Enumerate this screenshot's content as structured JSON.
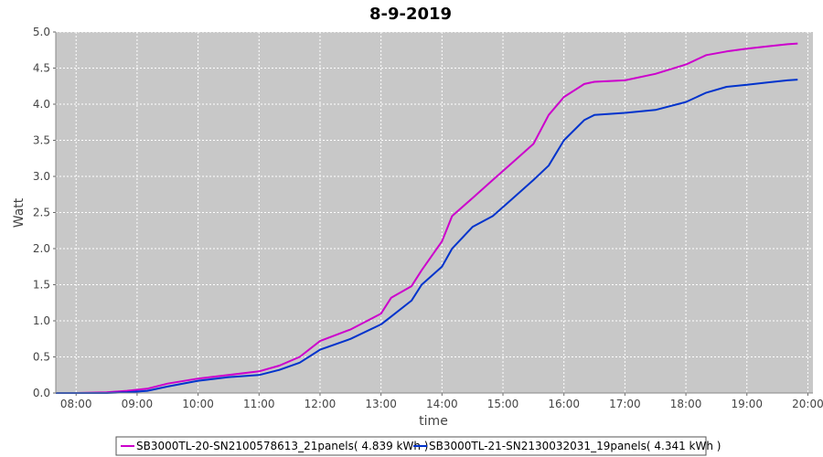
{
  "chart_data": {
    "type": "line",
    "title": "8-9-2019",
    "xlabel": "time",
    "ylabel": "Watt",
    "xlim": [
      "07:40",
      "20:05"
    ],
    "ylim": [
      0,
      5.0
    ],
    "x_ticks": [
      "08:00",
      "09:00",
      "10:00",
      "11:00",
      "12:00",
      "13:00",
      "14:00",
      "15:00",
      "16:00",
      "17:00",
      "18:00",
      "19:00",
      "20:00"
    ],
    "y_ticks": [
      "0.0",
      "0.5",
      "1.0",
      "1.5",
      "2.0",
      "2.5",
      "3.0",
      "3.5",
      "4.0",
      "4.5",
      "5.0"
    ],
    "grid": true,
    "background": "#c8c8c8",
    "legend_position": "bottom",
    "x": [
      "07:40",
      "08:00",
      "08:30",
      "08:50",
      "09:10",
      "09:30",
      "10:00",
      "10:30",
      "11:00",
      "11:20",
      "11:40",
      "12:00",
      "12:30",
      "13:00",
      "13:10",
      "13:30",
      "13:40",
      "14:00",
      "14:10",
      "14:30",
      "14:50",
      "15:10",
      "15:30",
      "15:45",
      "16:00",
      "16:20",
      "16:30",
      "17:00",
      "17:30",
      "18:00",
      "18:20",
      "18:40",
      "19:00",
      "19:20",
      "19:40",
      "19:50"
    ],
    "series": [
      {
        "name": "SB3000TL-20-SN2100578613_21panels( 4.839 kWh )",
        "color": "#cc00cc",
        "values": [
          0.0,
          0.0,
          0.01,
          0.03,
          0.06,
          0.13,
          0.2,
          0.25,
          0.3,
          0.38,
          0.5,
          0.72,
          0.88,
          1.1,
          1.32,
          1.48,
          1.7,
          2.1,
          2.45,
          2.7,
          2.95,
          3.2,
          3.45,
          3.85,
          4.1,
          4.28,
          4.31,
          4.33,
          4.42,
          4.55,
          4.68,
          4.73,
          4.77,
          4.8,
          4.83,
          4.84
        ]
      },
      {
        "name": "SB3000TL-21-SN2130032031_19panels( 4.341 kWh )",
        "color": "#0033cc",
        "values": [
          0.0,
          0.0,
          0.0,
          0.01,
          0.03,
          0.09,
          0.17,
          0.22,
          0.25,
          0.32,
          0.42,
          0.6,
          0.75,
          0.95,
          1.06,
          1.28,
          1.5,
          1.75,
          2.0,
          2.3,
          2.45,
          2.7,
          2.95,
          3.15,
          3.5,
          3.78,
          3.85,
          3.88,
          3.92,
          4.03,
          4.16,
          4.24,
          4.27,
          4.3,
          4.33,
          4.34
        ]
      }
    ]
  }
}
